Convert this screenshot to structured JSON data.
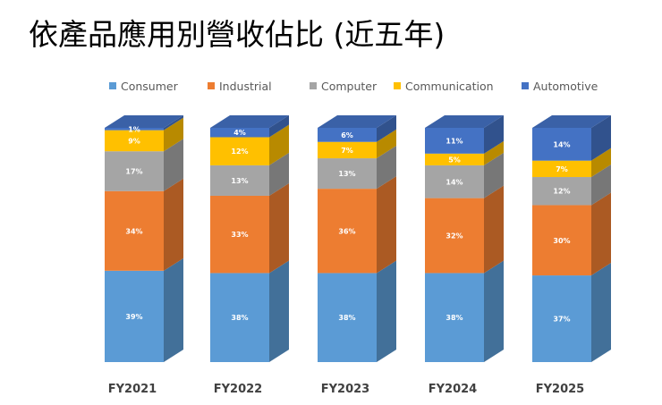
{
  "chart_data": {
    "type": "bar",
    "stacked": "percent",
    "title": "依產品應用別營收佔比 (近五年)",
    "categories": [
      "FY2021",
      "FY2022",
      "FY2023",
      "FY2024",
      "FY2025"
    ],
    "series": [
      {
        "name": "Consumer",
        "color": "#5b9bd5",
        "values": [
          39,
          38,
          38,
          38,
          37
        ]
      },
      {
        "name": "Industrial",
        "color": "#ed7d31",
        "values": [
          34,
          33,
          36,
          32,
          30
        ]
      },
      {
        "name": "Computer",
        "color": "#a5a5a5",
        "values": [
          17,
          13,
          13,
          14,
          12
        ]
      },
      {
        "name": "Communication",
        "color": "#ffc000",
        "values": [
          9,
          12,
          7,
          5,
          7
        ]
      },
      {
        "name": "Automotive",
        "color": "#4472c4",
        "values": [
          1,
          4,
          6,
          11,
          14
        ]
      }
    ],
    "ylim": [
      0,
      100
    ],
    "legend": "top",
    "grid": false,
    "style": "3d-column"
  }
}
